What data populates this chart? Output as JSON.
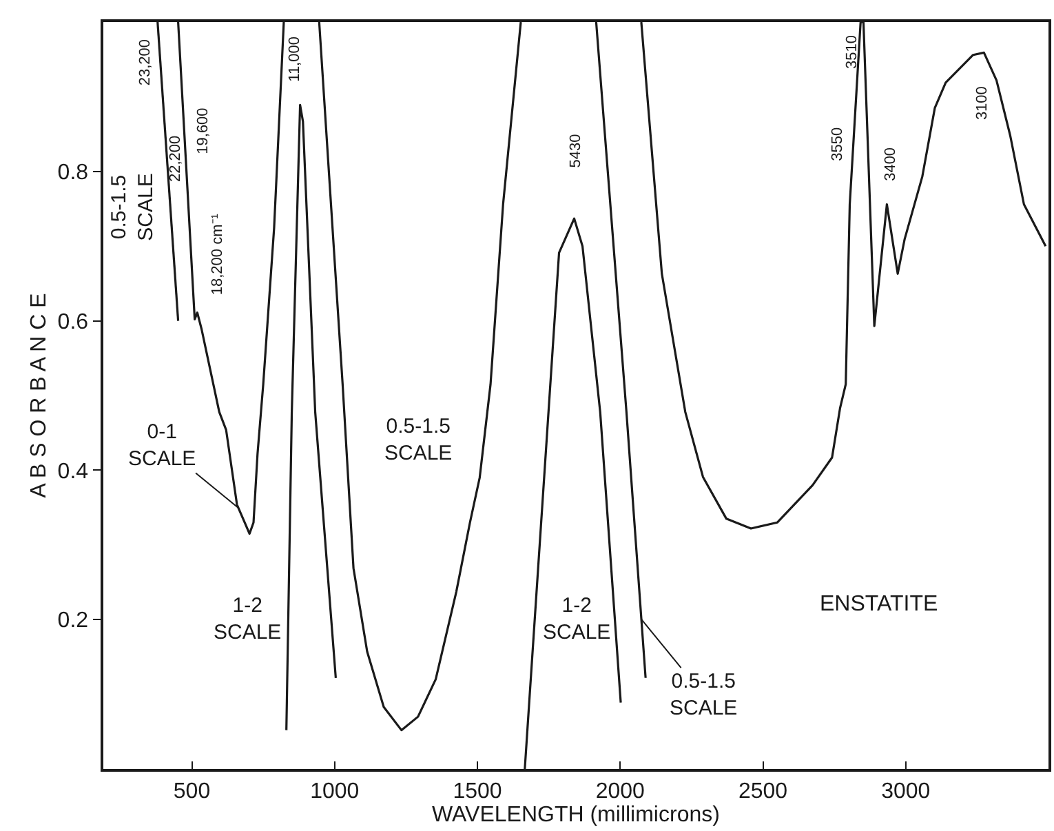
{
  "chart_data": {
    "type": "line",
    "xlabel": "WAVELENGTH (millimicrons)",
    "ylabel": "A B S O R B A N C E",
    "x": [
      380,
      452,
      null,
      452,
      510,
      519,
      534,
      596,
      620,
      658,
      702,
      716,
      730,
      750,
      788,
      822,
      null,
      831,
      850,
      879,
      889,
      932,
      1004,
      null,
      946,
      1028,
      1066,
      1114,
      1172,
      1234,
      1292,
      1354,
      1426,
      1474,
      1508,
      1546,
      1590,
      1652,
      null,
      1666,
      1786,
      1839,
      1868,
      1930,
      2002,
      null,
      1916,
      2022,
      2089,
      null,
      2074,
      2146,
      2228,
      2290,
      2372,
      2458,
      2550,
      2674,
      2742,
      2770,
      2790,
      2804,
      2842,
      2852,
      2890,
      2934,
      2972,
      2996,
      3058,
      3102,
      3140,
      3236,
      3274,
      3318,
      3366,
      3414,
      3490
    ],
    "series": [
      {
        "color": "#1a1a1a",
        "values": [
          1.0,
          0.6,
          null,
          1.0,
          0.602,
          0.611,
          0.589,
          0.478,
          0.454,
          0.354,
          0.315,
          0.33,
          0.422,
          0.515,
          0.724,
          1.0,
          null,
          0.052,
          0.478,
          0.889,
          0.867,
          0.478,
          0.122,
          null,
          1.0,
          0.515,
          0.269,
          0.157,
          0.083,
          0.052,
          0.07,
          0.12,
          0.237,
          0.33,
          0.39,
          0.515,
          0.756,
          1.0,
          null,
          0.0,
          0.691,
          0.737,
          0.7,
          0.478,
          0.089,
          null,
          1.0,
          0.478,
          0.122,
          null,
          1.0,
          0.663,
          0.478,
          0.391,
          0.335,
          0.322,
          0.33,
          0.38,
          0.417,
          0.483,
          0.515,
          0.756,
          1.0,
          1.0,
          0.593,
          0.756,
          0.663,
          0.709,
          0.793,
          0.885,
          0.919,
          0.956,
          0.959,
          0.922,
          0.848,
          0.756,
          0.7
        ]
      }
    ],
    "xlim": [
      190,
      3500
    ],
    "ylim": [
      0,
      1.0
    ],
    "xticks": [
      500,
      1000,
      1500,
      2000,
      2500,
      3000
    ],
    "yticks": [
      0.2,
      0.4,
      0.6,
      0.8
    ],
    "marker": "none",
    "line_style": "solid",
    "annotations": [
      "23,200",
      "22,200",
      "19,600",
      "18,200 cm⁻¹",
      "0.5-1.5\nSCALE",
      "11,000",
      {
        "text": "0-1\nSCALE",
        "x": 661,
        "y": 0.35
      },
      "1-2\nSCALE",
      "0.5-1.5\nSCALE",
      "5430",
      "1-2\nSCALE",
      {
        "text": "0.5-1.5\nSCALE",
        "x": 2075,
        "y": 0.2
      },
      "ENSTATITE",
      "3550",
      "3510",
      "3400",
      "3100"
    ]
  }
}
